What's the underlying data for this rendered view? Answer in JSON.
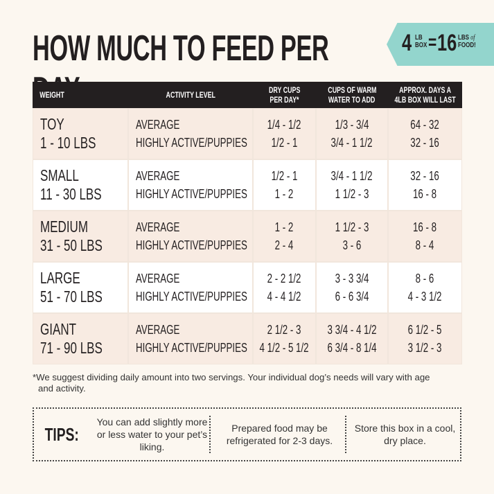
{
  "header": {
    "title": "HOW MUCH TO FEED PER DAY"
  },
  "badge": {
    "left_number": "4",
    "left_unit": [
      "LB",
      "BOX"
    ],
    "equals": "=",
    "right_number": "16",
    "right_unit": [
      "LBS",
      "FOOD!"
    ],
    "of": "of"
  },
  "table": {
    "columns": [
      [
        "WEIGHT"
      ],
      [
        "ACTIVITY LEVEL"
      ],
      [
        "DRY CUPS",
        "PER DAY*"
      ],
      [
        "CUPS OF WARM",
        "WATER TO ADD"
      ],
      [
        "APPROX. DAYS A",
        "4LB BOX WILL LAST"
      ]
    ],
    "rows": [
      {
        "size": "TOY",
        "range": "1 - 10 LBS",
        "activity": [
          "AVERAGE",
          "HIGHLY ACTIVE/PUPPIES"
        ],
        "dry": [
          "1/4 - 1/2",
          "1/2 - 1"
        ],
        "water": [
          "1/3 - 3/4",
          "3/4 - 1 1/2"
        ],
        "days": [
          "64 - 32",
          "32 - 16"
        ]
      },
      {
        "size": "SMALL",
        "range": "11 - 30 LBS",
        "activity": [
          "AVERAGE",
          "HIGHLY ACTIVE/PUPPIES"
        ],
        "dry": [
          "1/2 - 1",
          "1 - 2"
        ],
        "water": [
          "3/4 - 1 1/2",
          "1 1/2 - 3"
        ],
        "days": [
          "32 - 16",
          "16 - 8"
        ]
      },
      {
        "size": "MEDIUM",
        "range": "31 - 50 LBS",
        "activity": [
          "AVERAGE",
          "HIGHLY ACTIVE/PUPPIES"
        ],
        "dry": [
          "1 - 2",
          "2 - 4"
        ],
        "water": [
          "1 1/2 - 3",
          "3 - 6"
        ],
        "days": [
          "16 - 8",
          "8 - 4"
        ]
      },
      {
        "size": "LARGE",
        "range": "51 - 70 LBS",
        "activity": [
          "AVERAGE",
          "HIGHLY ACTIVE/PUPPIES"
        ],
        "dry": [
          "2 - 2 1/2",
          "4 - 4 1/2"
        ],
        "water": [
          "3 - 3 3/4",
          "6 - 6 3/4"
        ],
        "days": [
          "8 - 6",
          "4 - 3 1/2"
        ]
      },
      {
        "size": "GIANT",
        "range": "71 - 90 LBS",
        "activity": [
          "AVERAGE",
          "HIGHLY ACTIVE/PUPPIES"
        ],
        "dry": [
          "2 1/2 - 3",
          "4 1/2 - 5 1/2"
        ],
        "water": [
          "3 3/4 - 4 1/2",
          "6 3/4 - 8 1/4"
        ],
        "days": [
          "6 1/2 - 5",
          "3 1/2 - 3"
        ]
      }
    ]
  },
  "footnote": "*We suggest dividing daily amount into two servings. Your individual dog’s needs will vary with age and activity.",
  "tips": {
    "label": "TIPS:",
    "items": [
      "You can add slightly more or less water to your pet’s liking.",
      "Prepared food may be refrigerated for 2-3 days.",
      "Store this box in a cool, dry place."
    ]
  }
}
